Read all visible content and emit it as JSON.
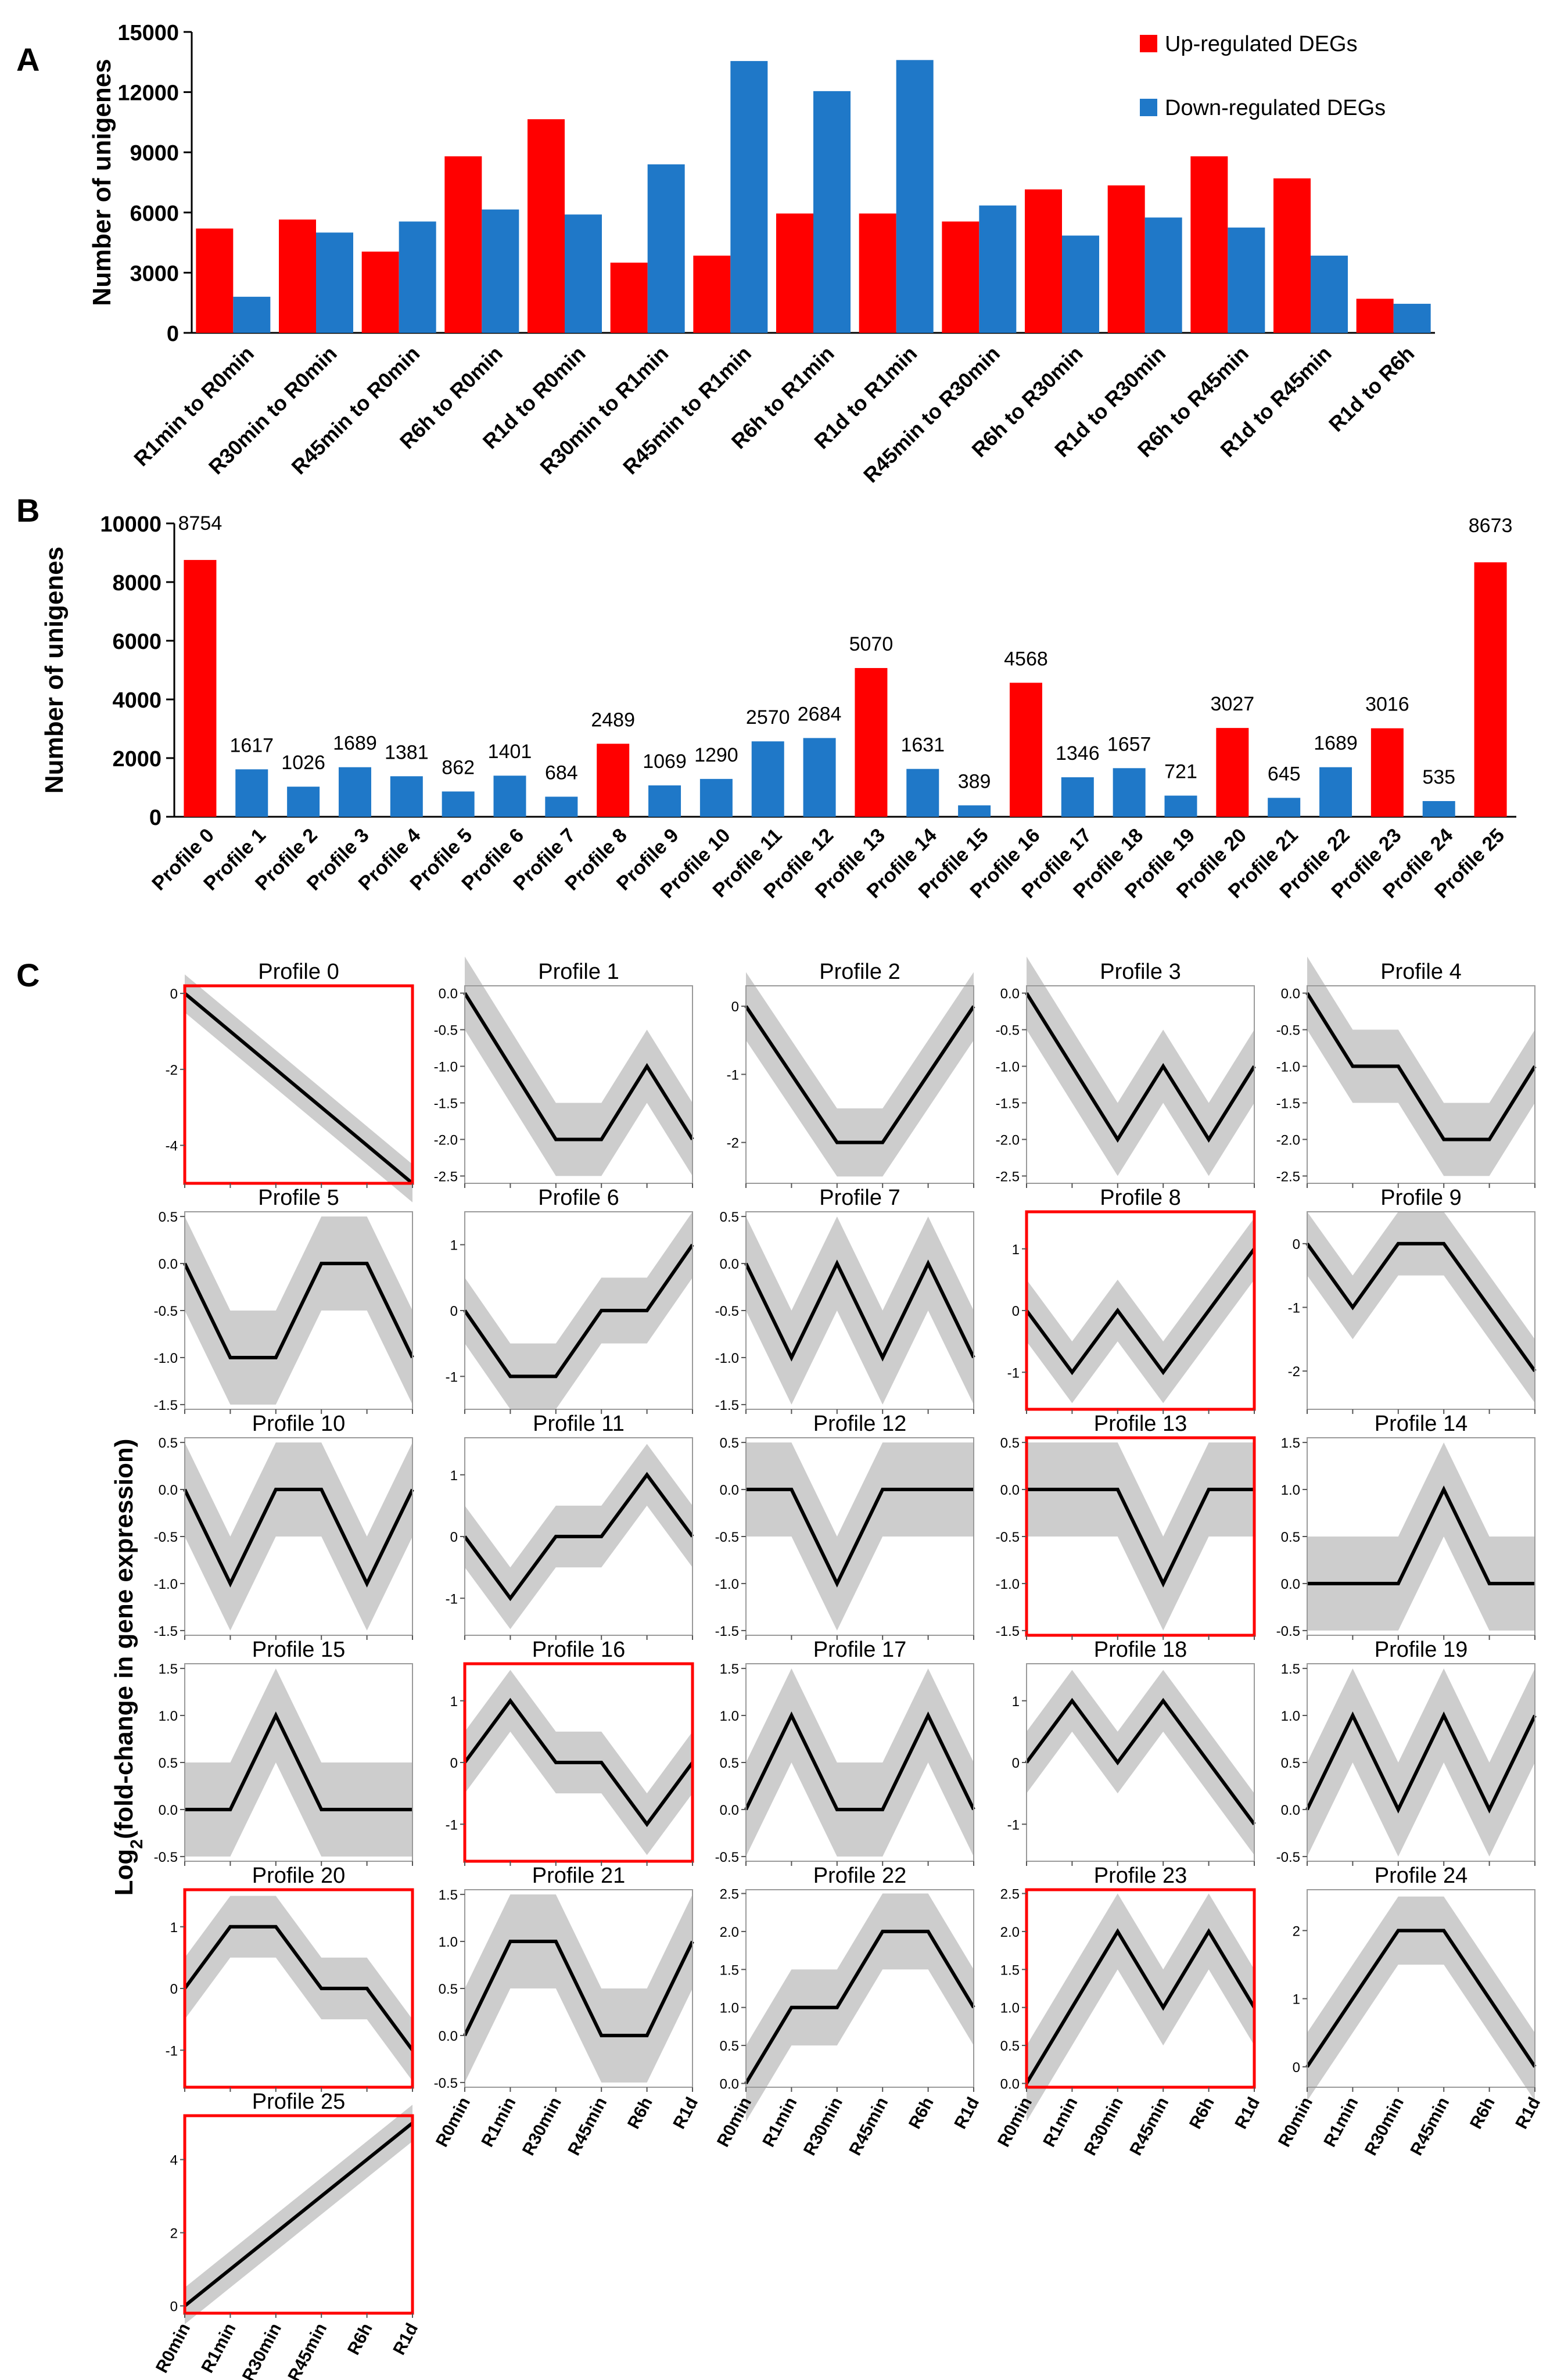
{
  "colors": {
    "up": "#ff0000",
    "down": "#1f78c8",
    "profile_line": "#000000",
    "band": "#c8c8c8",
    "highlight": "#ff0000",
    "frame": "#9a9a9a"
  },
  "panel_labels": {
    "A": "A",
    "B": "B",
    "C": "C"
  },
  "chart_data": [
    {
      "id": "A",
      "type": "bar",
      "title": "",
      "ylabel": "Number of unigenes",
      "xlabel": "",
      "ylim": [
        0,
        15000
      ],
      "yticks": [
        0,
        3000,
        6000,
        9000,
        12000,
        15000
      ],
      "categories": [
        "R1min to R0min",
        "R30min to R0min",
        "R45min to R0min",
        "R6h to R0min",
        "R1d to R0min",
        "R30min to R1min",
        "R45min to R1min",
        "R6h to R1min",
        "R1d to R1min",
        "R45min to R30min",
        "R6h to R30min",
        "R1d to R30min",
        "R6h to R45min",
        "R1d to R45min",
        "R1d to R6h"
      ],
      "series": [
        {
          "name": "Up-regulated DEGs",
          "color": "#ff0000",
          "values": [
            5200,
            5650,
            4050,
            8800,
            10650,
            3500,
            3850,
            5950,
            5950,
            5550,
            7150,
            7350,
            8800,
            7700,
            1700
          ]
        },
        {
          "name": "Down-regulated DEGs",
          "color": "#1f78c8",
          "values": [
            1800,
            5000,
            5550,
            6150,
            5900,
            8400,
            13550,
            12050,
            13600,
            6350,
            4850,
            5750,
            5250,
            3850,
            1450
          ]
        }
      ],
      "legend_position": "top-right"
    },
    {
      "id": "B",
      "type": "bar",
      "title": "",
      "ylabel": "Number of unigenes",
      "xlabel": "",
      "ylim": [
        0,
        10000
      ],
      "yticks": [
        0,
        2000,
        4000,
        6000,
        8000,
        10000
      ],
      "categories": [
        "Profile 0",
        "Profile 1",
        "Profile 2",
        "Profile 3",
        "Profile 4",
        "Profile 5",
        "Profile 6",
        "Profile 7",
        "Profile 8",
        "Profile 9",
        "Profile 10",
        "Profile 11",
        "Profile 12",
        "Profile 13",
        "Profile 14",
        "Profile 15",
        "Profile 16",
        "Profile 17",
        "Profile 18",
        "Profile 19",
        "Profile 20",
        "Profile 21",
        "Profile 22",
        "Profile 23",
        "Profile 24",
        "Profile 25"
      ],
      "values": [
        8754,
        1617,
        1026,
        1689,
        1381,
        862,
        1401,
        684,
        2489,
        1069,
        1290,
        2570,
        2684,
        5070,
        1631,
        389,
        4568,
        1346,
        1657,
        721,
        3027,
        645,
        1689,
        3016,
        535,
        8673
      ],
      "highlighted": [
        0,
        8,
        13,
        16,
        20,
        23,
        25
      ],
      "data_labels": [
        "8754",
        "1617",
        "1026",
        "1689",
        "1381",
        "862",
        "1401",
        "684",
        "2489",
        "1069",
        "1290",
        "2570",
        "2684",
        "5070",
        "1631",
        "389",
        "4568",
        "1346",
        "1657",
        "721",
        "3027",
        "645",
        "1689",
        "3016",
        "535",
        "8673"
      ]
    },
    {
      "id": "C",
      "type": "line",
      "ylabel": "Log2(fold-change in gene expression)",
      "x": [
        "R0min",
        "R1min",
        "R30min",
        "R45min",
        "R6h",
        "R1d"
      ],
      "profiles": [
        {
          "title": "Profile 0",
          "values": [
            0,
            -1,
            -2,
            -3,
            -4,
            -5
          ],
          "ylim": [
            -5,
            0.2
          ],
          "yticks": [
            "0",
            "-2",
            "-4"
          ],
          "ytick_values": [
            0,
            -2,
            -4
          ],
          "highlight": true
        },
        {
          "title": "Profile 1",
          "values": [
            0,
            -1,
            -2,
            -2,
            -1,
            -2
          ],
          "ylim": [
            -2.6,
            0.1
          ],
          "yticks": [
            "0.0",
            "-0.5",
            "-1.0",
            "-1.5",
            "-2.0",
            "-2.5"
          ],
          "ytick_values": [
            0,
            -0.5,
            -1,
            -1.5,
            -2,
            -2.5
          ],
          "highlight": false
        },
        {
          "title": "Profile 2",
          "values": [
            0,
            -1,
            -2,
            -2,
            -1,
            0
          ],
          "ylim": [
            -2.6,
            0.3
          ],
          "yticks": [
            "0",
            "-1",
            "-2"
          ],
          "ytick_values": [
            0,
            -1,
            -2
          ],
          "highlight": false
        },
        {
          "title": "Profile 3",
          "values": [
            0,
            -1,
            -2,
            -1,
            -2,
            -1
          ],
          "ylim": [
            -2.6,
            0.1
          ],
          "yticks": [
            "0.0",
            "-0.5",
            "-1.0",
            "-1.5",
            "-2.0",
            "-2.5"
          ],
          "ytick_values": [
            0,
            -0.5,
            -1,
            -1.5,
            -2,
            -2.5
          ],
          "highlight": false
        },
        {
          "title": "Profile  4",
          "values": [
            0,
            -1,
            -1,
            -2,
            -2,
            -1
          ],
          "ylim": [
            -2.6,
            0.1
          ],
          "yticks": [
            "0.0",
            "-0.5",
            "-1.0",
            "-1.5",
            "-2.0",
            "-2.5"
          ],
          "ytick_values": [
            0,
            -0.5,
            -1,
            -1.5,
            -2,
            -2.5
          ],
          "highlight": false
        },
        {
          "title": "Profile 5",
          "values": [
            0,
            -1,
            -1,
            0,
            0,
            -1
          ],
          "ylim": [
            -1.55,
            0.55
          ],
          "yticks": [
            "0.5",
            "0.0",
            "-0.5",
            "-1.0",
            "-1.5"
          ],
          "ytick_values": [
            0.5,
            0,
            -0.5,
            -1,
            -1.5
          ],
          "highlight": false
        },
        {
          "title": "Profile 6",
          "values": [
            0,
            -1,
            -1,
            0,
            0,
            1
          ],
          "ylim": [
            -1.5,
            1.5
          ],
          "yticks": [
            "1",
            "0",
            "-1"
          ],
          "ytick_values": [
            1,
            0,
            -1
          ],
          "highlight": false
        },
        {
          "title": "Profile 7",
          "values": [
            0,
            -1,
            0,
            -1,
            0,
            -1
          ],
          "ylim": [
            -1.55,
            0.55
          ],
          "yticks": [
            "0.5",
            "0.0",
            "-0.5",
            "-1.0",
            "-1.5"
          ],
          "ytick_values": [
            0.5,
            0,
            -0.5,
            -1,
            -1.5
          ],
          "highlight": false
        },
        {
          "title": "Profile 8",
          "values": [
            0,
            -1,
            0,
            -1,
            0,
            1
          ],
          "ylim": [
            -1.6,
            1.6
          ],
          "yticks": [
            "1",
            "0",
            "-1"
          ],
          "ytick_values": [
            1,
            0,
            -1
          ],
          "highlight": true
        },
        {
          "title": "Profile  9",
          "values": [
            0,
            -1,
            0,
            0,
            -1,
            -2
          ],
          "ylim": [
            -2.6,
            0.5
          ],
          "yticks": [
            "0",
            "-1",
            "-2"
          ],
          "ytick_values": [
            0,
            -1,
            -2
          ],
          "highlight": false
        },
        {
          "title": "Profile 10",
          "values": [
            0,
            -1,
            0,
            0,
            -1,
            0
          ],
          "ylim": [
            -1.55,
            0.55
          ],
          "yticks": [
            "0.5",
            "0.0",
            "-0.5",
            "-1.0",
            "-1.5"
          ],
          "ytick_values": [
            0.5,
            0,
            -0.5,
            -1,
            -1.5
          ],
          "highlight": false
        },
        {
          "title": "Profile 11",
          "values": [
            0,
            -1,
            0,
            0,
            1,
            0
          ],
          "ylim": [
            -1.6,
            1.6
          ],
          "yticks": [
            "1",
            "0",
            "-1"
          ],
          "ytick_values": [
            1,
            0,
            -1
          ],
          "highlight": false
        },
        {
          "title": "Profile 12",
          "values": [
            0,
            0,
            -1,
            0,
            0,
            0
          ],
          "ylim": [
            -1.55,
            0.55
          ],
          "yticks": [
            "0.5",
            "0.0",
            "-0.5",
            "-1.0",
            "-1.5"
          ],
          "ytick_values": [
            0.5,
            0,
            -0.5,
            -1,
            -1.5
          ],
          "highlight": false
        },
        {
          "title": "Profile 13",
          "values": [
            0,
            0,
            0,
            -1,
            0,
            0
          ],
          "ylim": [
            -1.55,
            0.55
          ],
          "yticks": [
            "0.5",
            "0.0",
            "-0.5",
            "-1.0",
            "-1.5"
          ],
          "ytick_values": [
            0.5,
            0,
            -0.5,
            -1,
            -1.5
          ],
          "highlight": true
        },
        {
          "title": "Profile  14",
          "values": [
            0,
            0,
            0,
            1,
            0,
            0
          ],
          "ylim": [
            -0.55,
            1.55
          ],
          "yticks": [
            "1.5",
            "1.0",
            "0.5",
            "0.0",
            "-0.5"
          ],
          "ytick_values": [
            1.5,
            1,
            0.5,
            0,
            -0.5
          ],
          "highlight": false
        },
        {
          "title": "Profile 15",
          "values": [
            0,
            0,
            1,
            0,
            0,
            0
          ],
          "ylim": [
            -0.55,
            1.55
          ],
          "yticks": [
            "1.5",
            "1.0",
            "0.5",
            "0.0",
            "-0.5"
          ],
          "ytick_values": [
            1.5,
            1,
            0.5,
            0,
            -0.5
          ],
          "highlight": false
        },
        {
          "title": "Profile 16",
          "values": [
            0,
            1,
            0,
            0,
            -1,
            0
          ],
          "ylim": [
            -1.6,
            1.6
          ],
          "yticks": [
            "1",
            "0",
            "-1"
          ],
          "ytick_values": [
            1,
            0,
            -1
          ],
          "highlight": true
        },
        {
          "title": "Profile 17",
          "values": [
            0,
            1,
            0,
            0,
            1,
            0
          ],
          "ylim": [
            -0.55,
            1.55
          ],
          "yticks": [
            "1.5",
            "1.0",
            "0.5",
            "0.0",
            "-0.5"
          ],
          "ytick_values": [
            1.5,
            1,
            0.5,
            0,
            -0.5
          ],
          "highlight": false
        },
        {
          "title": "Profile 18",
          "values": [
            0,
            1,
            0,
            1,
            0,
            -1
          ],
          "ylim": [
            -1.6,
            1.6
          ],
          "yticks": [
            "1",
            "0",
            "-1"
          ],
          "ytick_values": [
            1,
            0,
            -1
          ],
          "highlight": false
        },
        {
          "title": "Profile  19",
          "values": [
            0,
            1,
            0,
            1,
            0,
            1
          ],
          "ylim": [
            -0.55,
            1.55
          ],
          "yticks": [
            "1.5",
            "1.0",
            "0.5",
            "0.0",
            "-0.5"
          ],
          "ytick_values": [
            1.5,
            1,
            0.5,
            0,
            -0.5
          ],
          "highlight": false
        },
        {
          "title": "Profile 20",
          "values": [
            0,
            1,
            1,
            0,
            0,
            -1
          ],
          "ylim": [
            -1.6,
            1.6
          ],
          "yticks": [
            "1",
            "0",
            "-1"
          ],
          "ytick_values": [
            1,
            0,
            -1
          ],
          "highlight": true
        },
        {
          "title": "Profile 21",
          "values": [
            0,
            1,
            1,
            0,
            0,
            1
          ],
          "ylim": [
            -0.55,
            1.55
          ],
          "yticks": [
            "1.5",
            "1.0",
            "0.5",
            "0.0",
            "-0.5"
          ],
          "ytick_values": [
            1.5,
            1,
            0.5,
            0,
            -0.5
          ],
          "highlight": false
        },
        {
          "title": "Profile 22",
          "values": [
            0,
            1,
            1,
            2,
            2,
            1
          ],
          "ylim": [
            -0.05,
            2.55
          ],
          "yticks": [
            "2.5",
            "2.0",
            "1.5",
            "1.0",
            "0.5",
            "0.0"
          ],
          "ytick_values": [
            2.5,
            2,
            1.5,
            1,
            0.5,
            0
          ],
          "highlight": false
        },
        {
          "title": "Profile 23",
          "values": [
            0,
            1,
            2,
            1,
            2,
            1
          ],
          "ylim": [
            -0.05,
            2.55
          ],
          "yticks": [
            "2.5",
            "2.0",
            "1.5",
            "1.0",
            "0.5",
            "0.0"
          ],
          "ytick_values": [
            2.5,
            2,
            1.5,
            1,
            0.5,
            0
          ],
          "highlight": true
        },
        {
          "title": "Profile  24",
          "values": [
            0,
            1,
            2,
            2,
            1,
            0
          ],
          "ylim": [
            -0.3,
            2.6
          ],
          "yticks": [
            "2",
            "1",
            "0"
          ],
          "ytick_values": [
            2,
            1,
            0
          ],
          "highlight": false
        },
        {
          "title": "Profile 25",
          "values": [
            0,
            1,
            2,
            3,
            4,
            5
          ],
          "ylim": [
            -0.2,
            5.2
          ],
          "yticks": [
            "4",
            "2",
            "0"
          ],
          "ytick_values": [
            4,
            2,
            0
          ],
          "highlight": true
        }
      ]
    }
  ]
}
